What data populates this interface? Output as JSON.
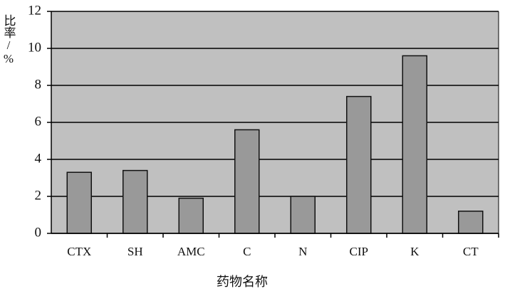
{
  "chart_data": {
    "type": "bar",
    "xlabel": "药物名称",
    "ylabel": "比率/%",
    "categories": [
      "CTX",
      "SH",
      "AMC",
      "C",
      "N",
      "CIP",
      "K",
      "CT"
    ],
    "values": [
      3.3,
      3.4,
      1.9,
      5.6,
      2.0,
      7.4,
      9.6,
      1.2
    ],
    "color": "#999999",
    "background": "#c0c0c0",
    "ylim": [
      0,
      12
    ],
    "yticks": [
      0,
      2,
      4,
      6,
      8,
      10,
      12
    ],
    "grid": true
  }
}
